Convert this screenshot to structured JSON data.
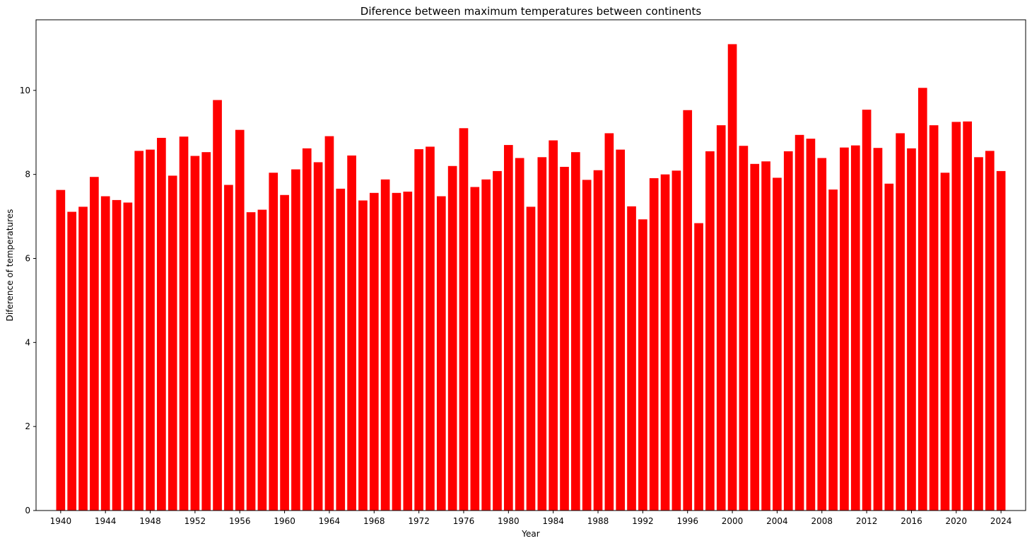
{
  "chart_data": {
    "type": "bar",
    "title": "Diference between maximum temperatures between continents",
    "xlabel": "Year",
    "ylabel": "Diference of temperatures",
    "bar_color": "#ff0000",
    "grid": false,
    "legend": "none",
    "xlim": [
      1937.8,
      2026.2
    ],
    "ylim": [
      0,
      11.68
    ],
    "x_ticks": [
      1940,
      1944,
      1948,
      1952,
      1956,
      1960,
      1964,
      1968,
      1972,
      1976,
      1980,
      1984,
      1988,
      1992,
      1996,
      2000,
      2004,
      2008,
      2012,
      2016,
      2020,
      2024
    ],
    "y_ticks": [
      0,
      2,
      4,
      6,
      8,
      10
    ],
    "categories": [
      1940,
      1941,
      1942,
      1943,
      1944,
      1945,
      1946,
      1947,
      1948,
      1949,
      1950,
      1951,
      1952,
      1953,
      1954,
      1955,
      1956,
      1957,
      1958,
      1959,
      1960,
      1961,
      1962,
      1963,
      1964,
      1965,
      1966,
      1967,
      1968,
      1969,
      1970,
      1971,
      1972,
      1973,
      1974,
      1975,
      1976,
      1977,
      1978,
      1979,
      1980,
      1981,
      1982,
      1983,
      1984,
      1985,
      1986,
      1987,
      1988,
      1989,
      1990,
      1991,
      1992,
      1993,
      1994,
      1995,
      1996,
      1997,
      1998,
      1999,
      2000,
      2001,
      2002,
      2003,
      2004,
      2005,
      2006,
      2007,
      2008,
      2009,
      2010,
      2011,
      2012,
      2013,
      2014,
      2015,
      2016,
      2017,
      2018,
      2019,
      2020,
      2021,
      2022,
      2023,
      2024
    ],
    "values": [
      7.63,
      7.11,
      7.23,
      7.94,
      7.48,
      7.39,
      7.33,
      8.56,
      8.59,
      8.87,
      7.97,
      8.9,
      8.44,
      8.53,
      9.77,
      7.75,
      9.06,
      7.1,
      7.16,
      8.04,
      7.51,
      8.12,
      8.62,
      8.29,
      8.91,
      7.66,
      8.45,
      7.38,
      7.56,
      7.88,
      7.56,
      7.59,
      8.6,
      8.66,
      7.48,
      8.2,
      9.1,
      7.7,
      7.88,
      8.08,
      8.7,
      8.39,
      7.23,
      8.41,
      8.81,
      8.18,
      8.53,
      7.87,
      8.1,
      8.98,
      8.59,
      7.24,
      6.93,
      7.91,
      8.0,
      8.09,
      9.53,
      6.84,
      8.55,
      9.17,
      11.1,
      8.68,
      8.25,
      8.31,
      7.92,
      8.55,
      8.94,
      8.85,
      8.39,
      7.64,
      8.64,
      8.69,
      9.54,
      8.63,
      7.78,
      8.98,
      8.62,
      10.06,
      9.17,
      8.04,
      9.25,
      9.26,
      8.41,
      8.56,
      8.08
    ]
  }
}
